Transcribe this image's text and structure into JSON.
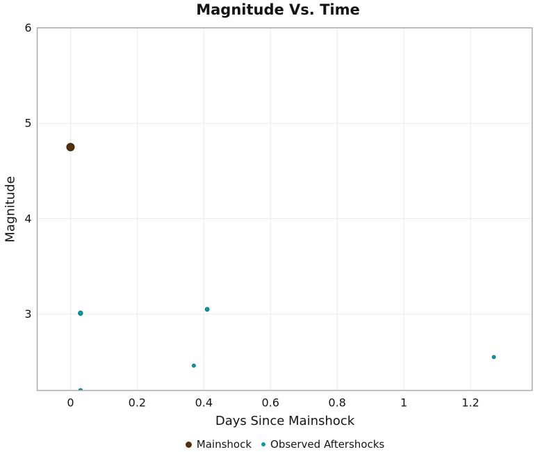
{
  "chart_data": {
    "type": "scatter",
    "title": "Magnitude Vs. Time",
    "xlabel": "Days Since Mainshock",
    "ylabel": "Magnitude",
    "xlim": [
      -0.1,
      1.385
    ],
    "ylim": [
      2.2,
      6
    ],
    "x_ticks": [
      0,
      0.2,
      0.4,
      0.6,
      0.8,
      1,
      1.2
    ],
    "y_ticks": [
      3,
      4,
      5,
      6
    ],
    "grid": true,
    "legend_position": "bottom-center",
    "series": [
      {
        "name": "Mainshock",
        "color": "#54300e",
        "stroke": "#35200a",
        "legend_marker_diameter": 9,
        "points": [
          {
            "x": 0,
            "y": 4.75,
            "r": 5.5
          }
        ]
      },
      {
        "name": "Observed Aftershocks",
        "color": "#009fa6",
        "stroke": "#0b7075",
        "legend_marker_diameter": 6,
        "points": [
          {
            "x": 0.03,
            "y": 3.01,
            "r": 3.2
          },
          {
            "x": 0.03,
            "y": 2.2,
            "r": 2.8
          },
          {
            "x": 0.37,
            "y": 2.46,
            "r": 2.4
          },
          {
            "x": 0.41,
            "y": 3.05,
            "r": 2.9
          },
          {
            "x": 1.27,
            "y": 2.55,
            "r": 2.4
          }
        ]
      }
    ]
  },
  "colors": {
    "background": "#ffffff",
    "grid": "#ebebeb",
    "plot_border": "#a9a9a9",
    "text": "#141414"
  }
}
